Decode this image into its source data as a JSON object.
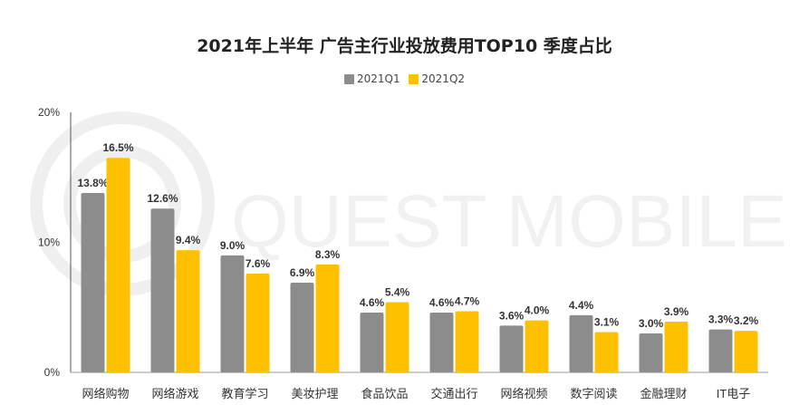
{
  "chart_data": {
    "type": "bar",
    "title": "2021年上半年 广告主行业投放费用TOP10 季度占比",
    "categories": [
      "网络购物",
      "网络游戏",
      "教育学习",
      "美妆护理",
      "食品饮品",
      "交通出行",
      "网络视频",
      "数字阅读",
      "金融理财",
      "IT电子"
    ],
    "series": [
      {
        "name": "2021Q1",
        "values": [
          13.8,
          12.6,
          9.0,
          6.9,
          4.6,
          4.6,
          3.6,
          4.4,
          3.0,
          3.3
        ],
        "labels": [
          "13.8%",
          "12.6%",
          "9.0%",
          "6.9%",
          "4.6%",
          "4.6%",
          "3.6%",
          "4.4%",
          "3.0%",
          "3.3%"
        ],
        "color": "#8c8c8c"
      },
      {
        "name": "2021Q2",
        "values": [
          16.5,
          9.4,
          7.6,
          8.3,
          5.4,
          4.7,
          4.0,
          3.1,
          3.9,
          3.2
        ],
        "labels": [
          "16.5%",
          "9.4%",
          "7.6%",
          "8.3%",
          "5.4%",
          "4.7%",
          "4.0%",
          "3.1%",
          "3.9%",
          "3.2%"
        ],
        "color": "#ffc000"
      }
    ],
    "yticks": [
      "0%",
      "10%",
      "20%"
    ],
    "ytick_values": [
      0,
      10,
      20
    ],
    "ylim": [
      0,
      20
    ],
    "xlabel": "",
    "ylabel": "",
    "grid": false,
    "legend_position": "top-center"
  },
  "watermark": {
    "text": "QUEST MOBILE"
  }
}
